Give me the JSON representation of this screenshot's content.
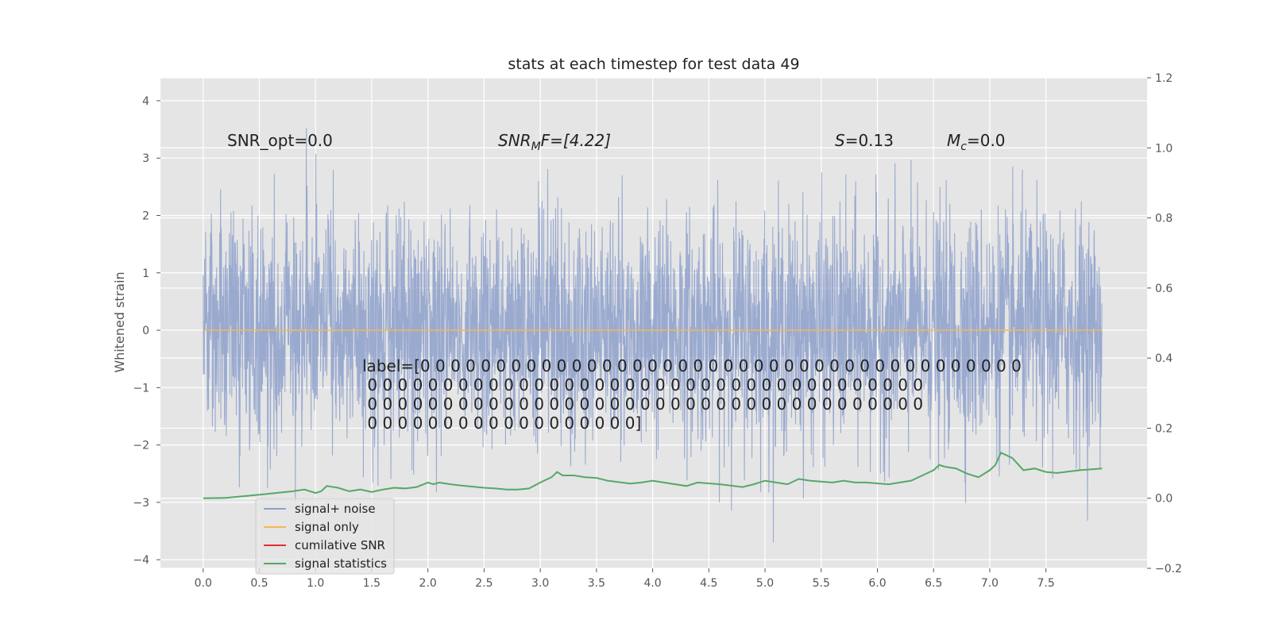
{
  "chart_data": {
    "type": "line",
    "title": "stats at each timestep for test data 49",
    "ylabel": "Whitened strain",
    "xlabel": "",
    "xlim": [
      -0.38,
      8.4
    ],
    "ylim": [
      -4.15,
      4.4
    ],
    "y2lim": [
      -0.2,
      1.2
    ],
    "x_ticks": [
      "0.0",
      "0.5",
      "1.0",
      "1.5",
      "2.0",
      "2.5",
      "3.0",
      "3.5",
      "4.0",
      "4.5",
      "5.0",
      "5.5",
      "6.0",
      "6.5",
      "7.0",
      "7.5"
    ],
    "y_ticks": [
      "4",
      "3",
      "2",
      "1",
      "0",
      "−1",
      "−2",
      "−3",
      "−4"
    ],
    "y2_ticks": [
      "1.2",
      "1.0",
      "0.8",
      "0.6",
      "0.4",
      "0.2",
      "0.0",
      "−0.2"
    ],
    "grid": true,
    "legend_position": "lower-left",
    "series": [
      {
        "name": "signal+ noise",
        "color": "#8da0cb",
        "axis": "left",
        "x_range": [
          0.0,
          8.0
        ],
        "approx_envelope": [
          -2.6,
          3.99
        ],
        "kind": "noise"
      },
      {
        "name": "signal only",
        "color": "#f0b955",
        "axis": "left",
        "x_range": [
          0.0,
          8.0
        ],
        "values_constant": 0.0
      },
      {
        "name": "cumilative SNR",
        "color": "#e0322a",
        "axis": "right",
        "x": [],
        "y": []
      },
      {
        "name": "signal statistics",
        "color": "#55a868",
        "axis": "right",
        "x": [
          0.0,
          0.2,
          0.5,
          0.8,
          0.9,
          1.0,
          1.05,
          1.1,
          1.2,
          1.3,
          1.4,
          1.5,
          1.6,
          1.7,
          1.8,
          1.9,
          2.0,
          2.05,
          2.1,
          2.2,
          2.3,
          2.4,
          2.5,
          2.6,
          2.7,
          2.8,
          2.9,
          3.0,
          3.1,
          3.15,
          3.2,
          3.3,
          3.4,
          3.5,
          3.6,
          3.8,
          3.9,
          4.0,
          4.1,
          4.3,
          4.4,
          4.6,
          4.8,
          4.9,
          5.0,
          5.1,
          5.2,
          5.3,
          5.4,
          5.6,
          5.7,
          5.8,
          5.9,
          6.1,
          6.2,
          6.3,
          6.4,
          6.5,
          6.55,
          6.6,
          6.7,
          6.8,
          6.9,
          7.0,
          7.05,
          7.1,
          7.2,
          7.3,
          7.4,
          7.5,
          7.6,
          7.8,
          8.0
        ],
        "y": [
          0.0,
          0.001,
          0.01,
          0.02,
          0.025,
          0.015,
          0.02,
          0.035,
          0.03,
          0.02,
          0.025,
          0.018,
          0.025,
          0.03,
          0.028,
          0.032,
          0.045,
          0.04,
          0.045,
          0.04,
          0.036,
          0.033,
          0.03,
          0.028,
          0.025,
          0.025,
          0.028,
          0.045,
          0.06,
          0.075,
          0.065,
          0.065,
          0.06,
          0.058,
          0.05,
          0.042,
          0.045,
          0.05,
          0.045,
          0.035,
          0.045,
          0.04,
          0.032,
          0.04,
          0.05,
          0.045,
          0.04,
          0.055,
          0.05,
          0.045,
          0.05,
          0.045,
          0.045,
          0.04,
          0.045,
          0.05,
          0.065,
          0.08,
          0.095,
          0.09,
          0.085,
          0.07,
          0.06,
          0.08,
          0.095,
          0.13,
          0.115,
          0.08,
          0.085,
          0.075,
          0.072,
          0.08,
          0.085
        ]
      }
    ],
    "annotations": {
      "snr_opt": "SNR_opt=0.0",
      "snr_mf_main": "SNR",
      "snr_mf_sub": "M",
      "snr_mf_rest": "F=[4.22]",
      "s_italic": "S",
      "s_rest": "=0.13",
      "mc_main": "M",
      "mc_sub": "c",
      "mc_rest": "=0.0",
      "label_lines": [
        "label=[0 0 0 0 0 0 0 0 0 0 0 0 0 0 0 0 0 0 0 0 0 0 0 0 0 0 0 0 0 0 0 0 0 0 0 0 0 0 0 0",
        " 0 0 0 0 0 0 0 0 0 0 0 0 0 0 0 0 0 0 0 0 0 0 0 0 0 0 0 0 0 0 0 0 0 0 0 0 0",
        " 0 0 0 0 0 0 0 0 0 0 0 0 0 0 0 0 0 0 0 0 0 0 0 0 0 0 0 0 0 0 0 0 0 0 0 0 0",
        " 0 0 0 0 0 0 0 0 0 0 0 0 0 0 0 0 0 0]"
      ]
    }
  },
  "colors": {
    "plot_background": "#e5e5e5",
    "grid": "#ffffff",
    "noise": "#8da0cb",
    "signal_only": "#f0b955",
    "cumulative_snr": "#e0322a",
    "statistics": "#55a868"
  }
}
